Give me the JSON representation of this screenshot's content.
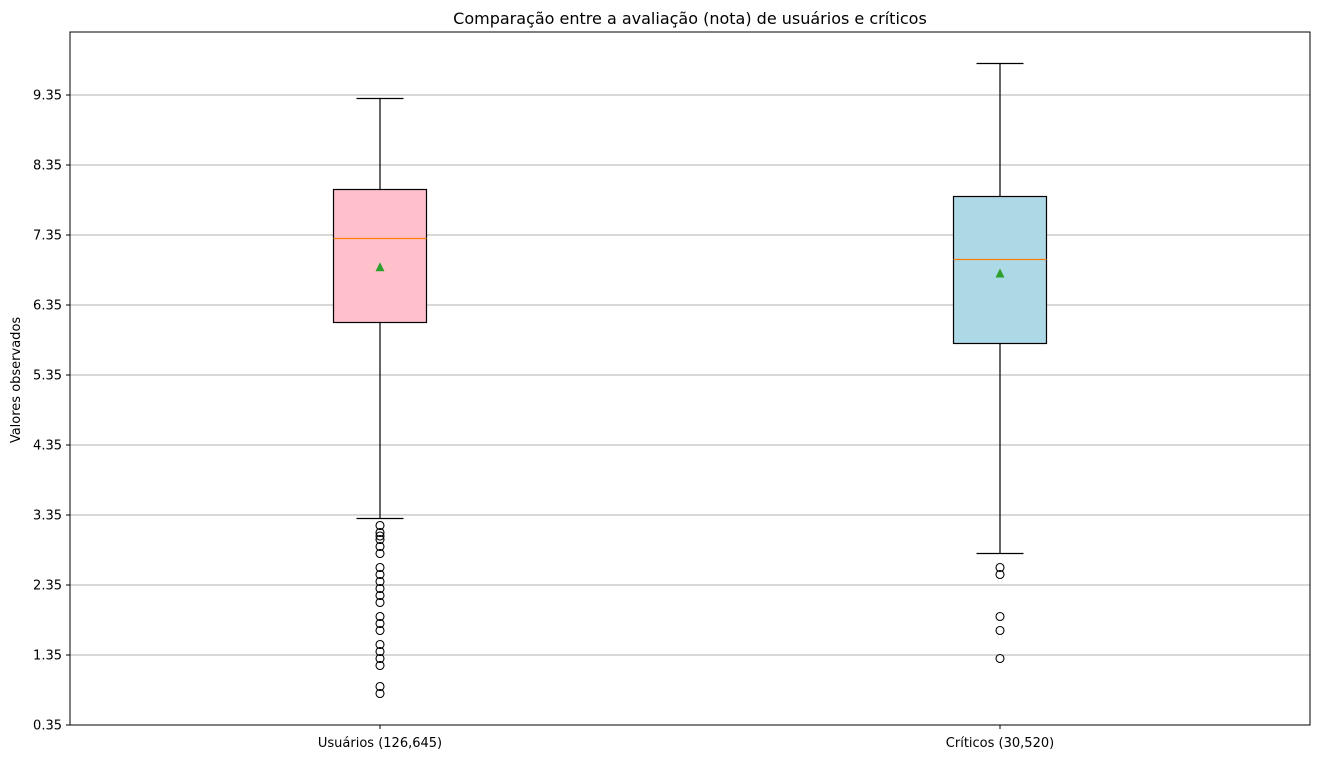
{
  "chart_data": {
    "type": "boxplot",
    "title": "Comparação entre a avaliação (nota) de usuários e críticos",
    "xlabel": "",
    "ylabel": "Valores observados",
    "ylim": [
      0.35,
      10.25
    ],
    "yticks": [
      "0.35",
      "1.35",
      "2.35",
      "3.35",
      "4.35",
      "5.35",
      "6.35",
      "7.35",
      "8.35",
      "9.35"
    ],
    "grid": "horizontal",
    "categories": [
      "Usuários (126,645)",
      "Críticos (30,520)"
    ],
    "boxes": [
      {
        "label": "Usuários (126,645)",
        "color": "#ffc0cb",
        "whisker_low": 3.3,
        "q1": 6.1,
        "median": 7.3,
        "q3": 8.0,
        "whisker_high": 9.3,
        "mean": 6.89,
        "outliers": [
          3.2,
          3.1,
          3.05,
          3.0,
          2.9,
          2.8,
          2.6,
          2.5,
          2.4,
          2.3,
          2.2,
          2.1,
          1.9,
          1.8,
          1.7,
          1.5,
          1.4,
          1.3,
          1.2,
          0.9,
          0.8
        ]
      },
      {
        "label": "Críticos (30,520)",
        "color": "#add8e6",
        "whisker_low": 2.8,
        "q1": 5.8,
        "median": 7.0,
        "q3": 7.9,
        "whisker_high": 9.8,
        "mean": 6.8,
        "outliers": [
          2.6,
          2.5,
          1.9,
          1.7,
          1.3
        ]
      }
    ]
  }
}
